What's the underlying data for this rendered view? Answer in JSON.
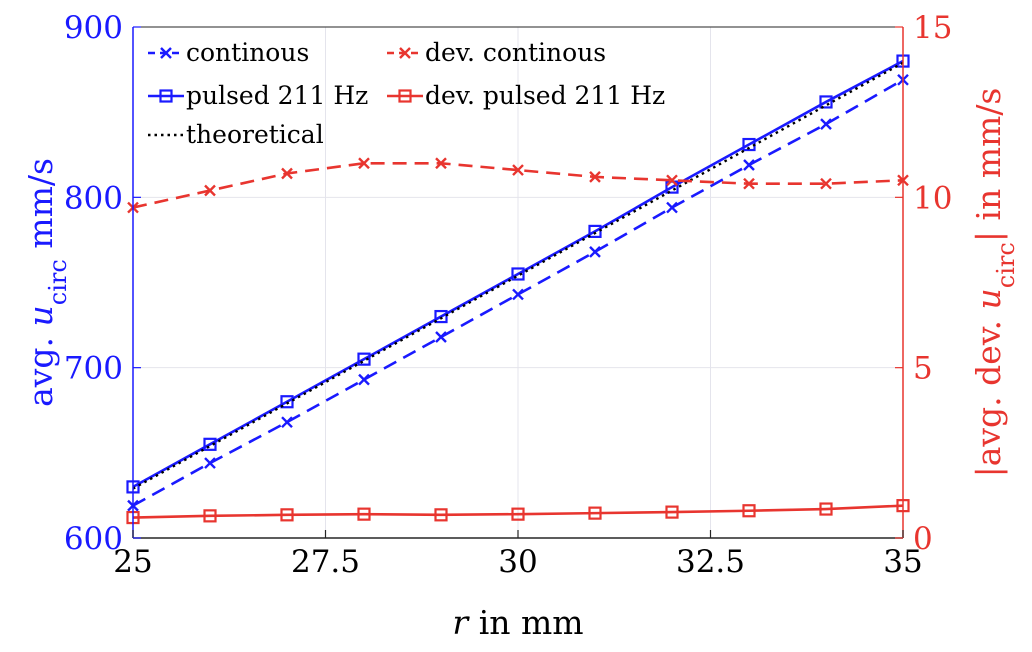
{
  "chart_data": {
    "type": "line",
    "x": [
      25,
      26,
      27,
      28,
      29,
      30,
      31,
      32,
      33,
      34,
      35
    ],
    "xlabel": {
      "var": "r",
      "rest": " in mm"
    },
    "xlim": [
      25,
      35
    ],
    "xticks": [
      "25",
      "27.5",
      "30",
      "32.5",
      "35"
    ],
    "xtick_values": [
      25,
      27.5,
      30,
      32.5,
      35
    ],
    "y_left": {
      "label": {
        "pre": "avg. ",
        "var": "u",
        "sub": "circ",
        "post": " mm/s"
      },
      "lim": [
        600,
        900
      ],
      "ticks": [
        "600",
        "700",
        "800",
        "900"
      ],
      "tick_values": [
        600,
        700,
        800,
        900
      ],
      "color": "#1a1aff"
    },
    "y_right": {
      "label": {
        "pre": "|avg. dev. ",
        "var": "u",
        "sub": "circ",
        "post": "| in mm/s"
      },
      "lim": [
        0,
        15
      ],
      "ticks": [
        "0",
        "5",
        "10",
        "15"
      ],
      "tick_values": [
        0,
        5,
        10,
        15
      ],
      "color": "#e8352f"
    },
    "grid": true,
    "legend_position": "top-left",
    "series": [
      {
        "name": "continous",
        "axis": "left",
        "color": "#1a1aff",
        "style": "dashed",
        "marker": "x",
        "values": [
          619,
          644,
          668,
          693,
          718,
          743,
          768,
          794,
          819,
          843,
          869
        ]
      },
      {
        "name": "pulsed 211 Hz",
        "axis": "left",
        "color": "#1a1aff",
        "style": "solid",
        "marker": "square",
        "values": [
          630,
          655,
          680,
          705,
          730,
          755,
          780,
          806,
          831,
          856,
          880
        ]
      },
      {
        "name": "theoretical",
        "axis": "left",
        "color": "#000000",
        "style": "dotted",
        "marker": "none",
        "values": [
          629,
          654,
          679,
          704,
          729,
          754,
          779,
          804,
          829,
          854,
          879
        ]
      },
      {
        "name": "dev. continous",
        "axis": "right",
        "color": "#e8352f",
        "style": "dashed",
        "marker": "x",
        "values": [
          9.7,
          10.2,
          10.7,
          11.0,
          11.0,
          10.8,
          10.6,
          10.5,
          10.4,
          10.4,
          10.5
        ]
      },
      {
        "name": "dev. pulsed 211 Hz",
        "axis": "right",
        "color": "#e8352f",
        "style": "solid",
        "marker": "square",
        "values": [
          0.6,
          0.65,
          0.68,
          0.7,
          0.68,
          0.7,
          0.73,
          0.76,
          0.8,
          0.85,
          0.95
        ]
      }
    ],
    "legend_layout": [
      [
        0,
        3
      ],
      [
        1,
        4
      ],
      [
        2
      ]
    ]
  }
}
